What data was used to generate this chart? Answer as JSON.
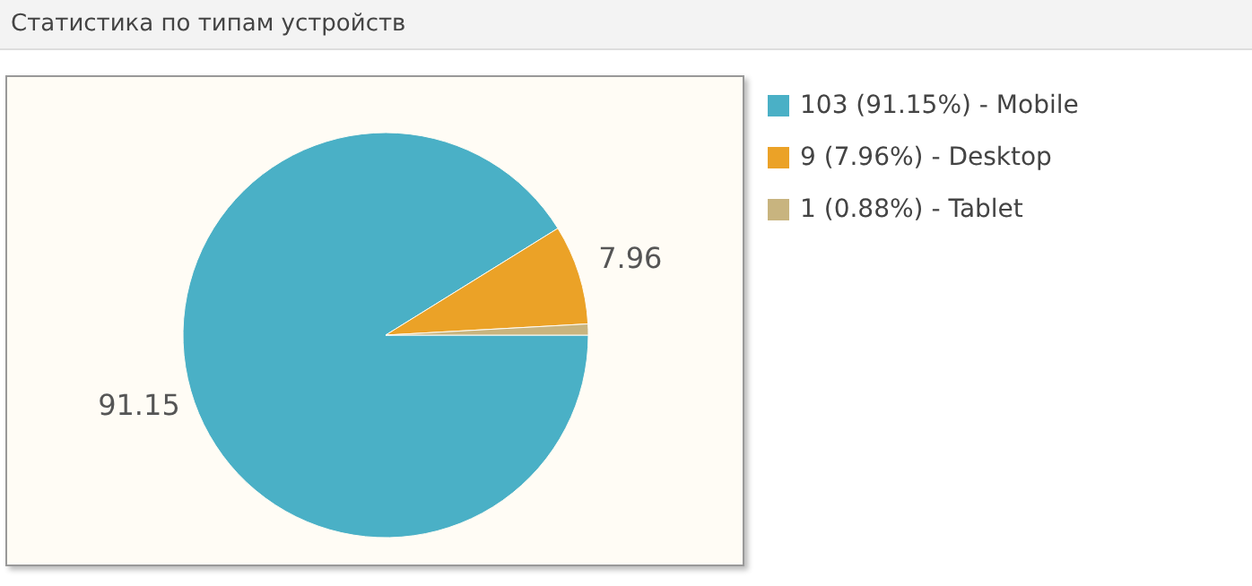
{
  "chart_data": {
    "type": "pie",
    "title": "Статистика по типам устройств",
    "categories": [
      "103 (91.15%) - Mobile",
      "9 (7.96%) - Desktop",
      "1 (0.88%) - Tablet"
    ],
    "values": [
      91.15,
      7.96,
      0.88
    ],
    "colors": [
      "#4ab0c6",
      "#eba227",
      "#c8b47f"
    ],
    "value_labels": [
      "91.15",
      "7.96",
      null
    ],
    "legend": "right"
  }
}
